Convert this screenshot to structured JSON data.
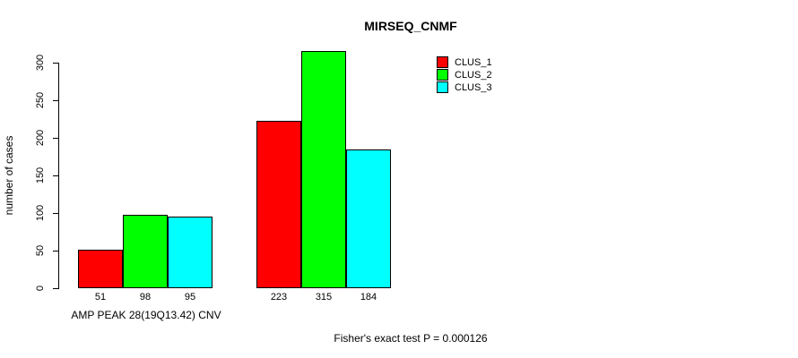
{
  "page": {
    "background": "#ffffff",
    "foreground": "#000000"
  },
  "chart_data": {
    "type": "bar",
    "title": "MIRSEQ_CNMF",
    "ylabel": "number of cases",
    "xlabel": "AMP PEAK 28(19Q13.42) CNV",
    "annotation": "Fisher's exact test P = 0.000126",
    "group_labels": [
      "AMP PEAK 28(19Q13.42) CNV",
      ""
    ],
    "series": [
      {
        "name": "CLUS_1",
        "color": "#ff0000",
        "values": [
          51,
          223
        ]
      },
      {
        "name": "CLUS_2",
        "color": "#00ff00",
        "values": [
          98,
          315
        ]
      },
      {
        "name": "CLUS_3",
        "color": "#00ffff",
        "values": [
          95,
          184
        ]
      }
    ],
    "yticks": [
      0,
      50,
      100,
      150,
      200,
      250,
      300
    ],
    "ylim": [
      0,
      315
    ],
    "grid": false,
    "legend_position": "top-right",
    "bar_value_labels": true,
    "axis_color": "#000000"
  }
}
